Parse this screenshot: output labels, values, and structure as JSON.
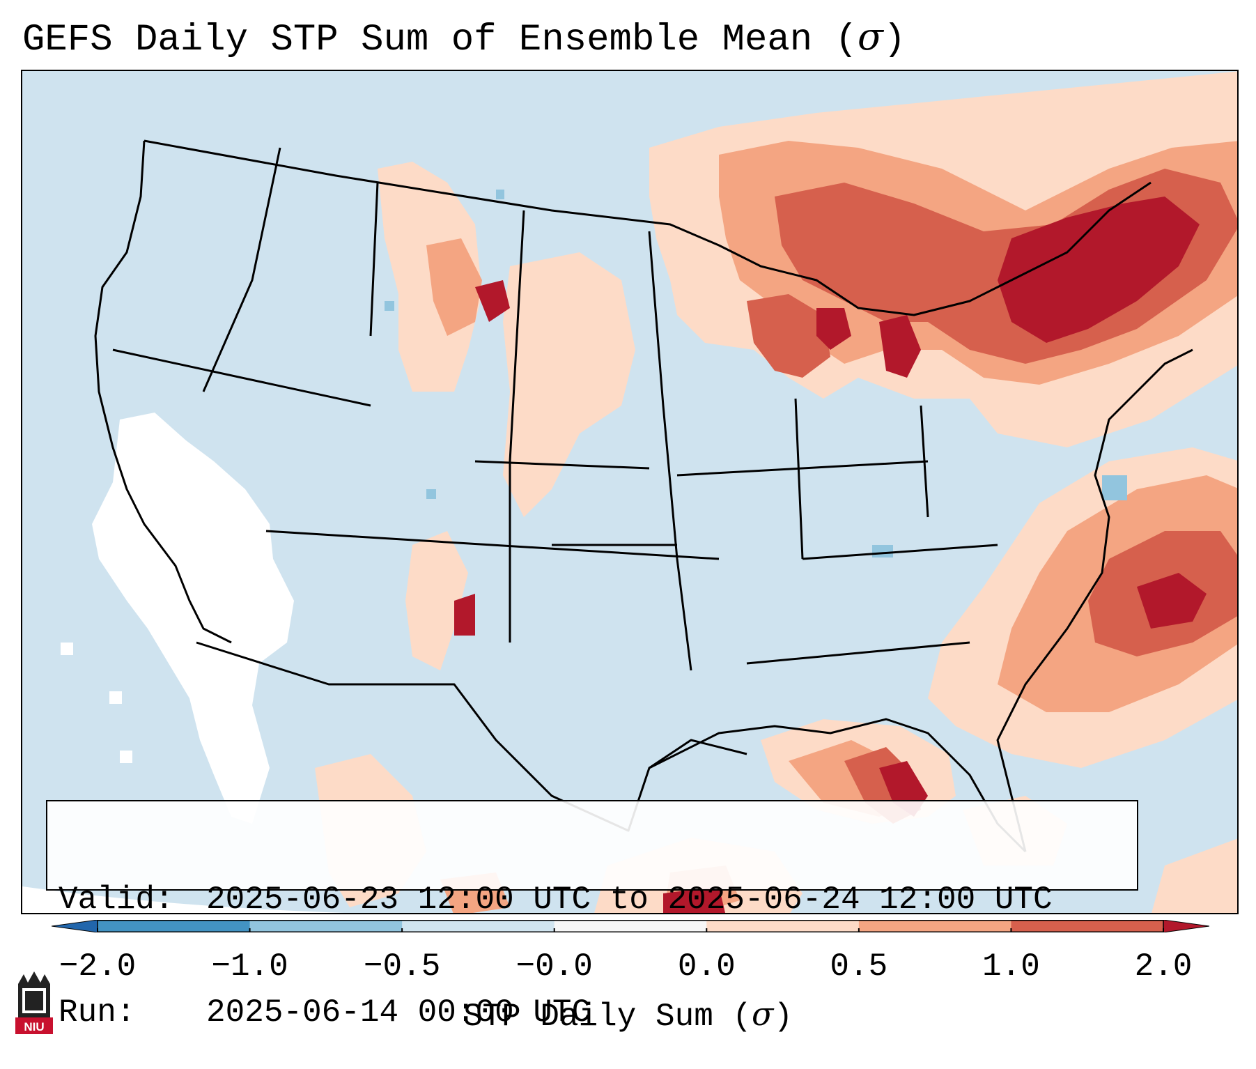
{
  "title": {
    "text": "GEFS Daily STP Sum of Ensemble Mean (",
    "sigma": "σ",
    "close": ")"
  },
  "map": {
    "background_color": "#cfe3ef",
    "region": "Contiguous United States",
    "color_scale": [
      "#2166ac",
      "#4393c3",
      "#92c5de",
      "#d1e5f0",
      "#ffffff",
      "#fddbc7",
      "#f4a582",
      "#d6604d",
      "#b2182b"
    ]
  },
  "info": {
    "valid_label": "Valid:",
    "valid_value": "2025-06-23 12:00 UTC to 2025-06-24 12:00 UTC",
    "run_label": "Run:",
    "run_value": "2025-06-14 00:00 UTC"
  },
  "colorbar": {
    "ticks": [
      "−2.0",
      "−1.0",
      "−0.5",
      "−0.0",
      "0.0",
      "0.5",
      "1.0",
      "2.0"
    ],
    "segment_colors": [
      "#4393c3",
      "#92c5de",
      "#d1e5f0",
      "#f7f7f7",
      "#fddbc7",
      "#f4a582",
      "#d6604d"
    ],
    "under_color": "#2166ac",
    "over_color": "#b2182b",
    "label_text": "STP Daily Sum (",
    "label_sigma": "σ",
    "label_close": ")"
  },
  "logo": {
    "text": "NIU"
  }
}
